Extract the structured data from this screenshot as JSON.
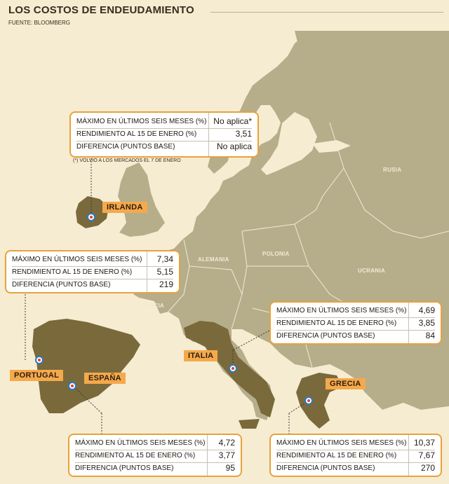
{
  "title": "LOS COSTOS DE ENDEUDAMIENTO",
  "source": "FUENTE: BLOOMBERG",
  "row_labels": {
    "max": "MÁXIMO EN ÚLTIMOS SEIS MESES (%)",
    "yield": "RENDIMIENTO AL 15 DE ENERO (%)",
    "diff": "DIFERENCIA (PUNTOS BASE)"
  },
  "countries": {
    "irlanda": {
      "label": "IRLANDA",
      "max": "No aplica*",
      "yield": "3,51",
      "diff": "No aplica"
    },
    "portugal": {
      "label": "PORTUGAL",
      "max": "7,34",
      "yield": "5,15",
      "diff": "219"
    },
    "espana": {
      "label": "ESPAÑA",
      "max": "4,72",
      "yield": "3,77",
      "diff": "95"
    },
    "italia": {
      "label": "ITALIA",
      "max": "4,69",
      "yield": "3,85",
      "diff": "84"
    },
    "grecia": {
      "label": "GRECIA",
      "max": "10,37",
      "yield": "7,67",
      "diff": "270"
    }
  },
  "footnote": "(*) VOLVIÓ A LOS MERCADOS EL 7 DE ENERO",
  "regions": {
    "rusia": "RUSIA",
    "alemania": "ALEMANIA",
    "polonia": "POLONIA",
    "ucrania": "UCRANIA",
    "francia": "FRANCIA"
  },
  "colors": {
    "sea": "#f6ecd2",
    "land": "#b6ad8b",
    "highlight": "#7a6a3b",
    "border": "#f3ead4",
    "accent": "#e8a23a",
    "tag": "#f5a94b"
  }
}
